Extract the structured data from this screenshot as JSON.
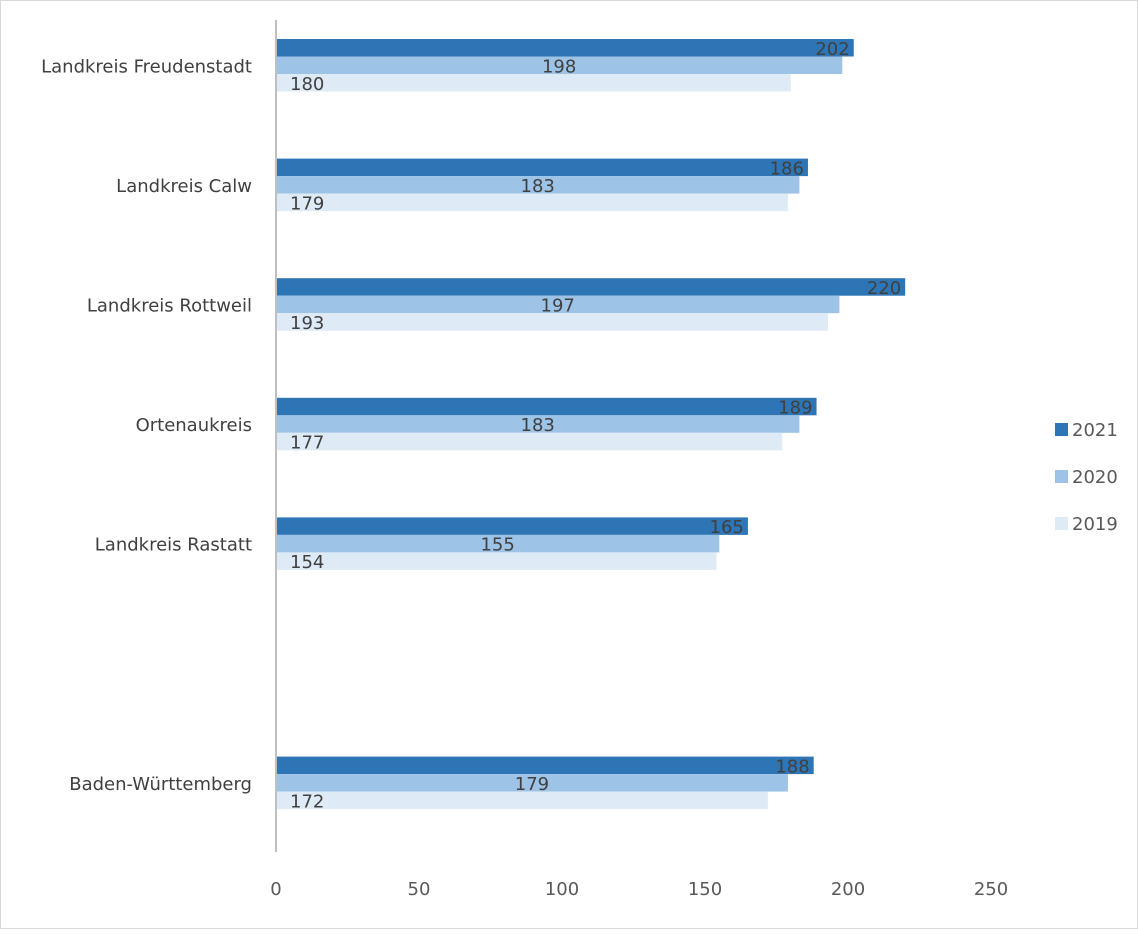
{
  "chart_data": {
    "type": "bar",
    "orientation": "horizontal",
    "categories": [
      "Landkreis Freudenstadt",
      "Landkreis Calw",
      "Landkreis Rottweil",
      "Ortenaukreis",
      "Landkreis Rastatt",
      "",
      "Baden-Württemberg"
    ],
    "series": [
      {
        "name": "2021",
        "color": "#2e75b6",
        "values": [
          202,
          186,
          220,
          189,
          165,
          null,
          188
        ]
      },
      {
        "name": "2020",
        "color": "#9dc3e6",
        "values": [
          198,
          183,
          197,
          183,
          155,
          null,
          179
        ]
      },
      {
        "name": "2019",
        "color": "#deebf7",
        "values": [
          180,
          179,
          193,
          177,
          154,
          null,
          172
        ]
      }
    ],
    "x_ticks": [
      "0",
      "50",
      "100",
      "150",
      "200",
      "250"
    ],
    "xlim": [
      0,
      250
    ],
    "title": "",
    "xlabel": "",
    "ylabel": "",
    "grid": false,
    "legend_position": "right",
    "legend": [
      {
        "name": "2021",
        "color": "#2e75b6"
      },
      {
        "name": "2020",
        "color": "#9dc3e6"
      },
      {
        "name": "2019",
        "color": "#deebf7"
      }
    ]
  }
}
